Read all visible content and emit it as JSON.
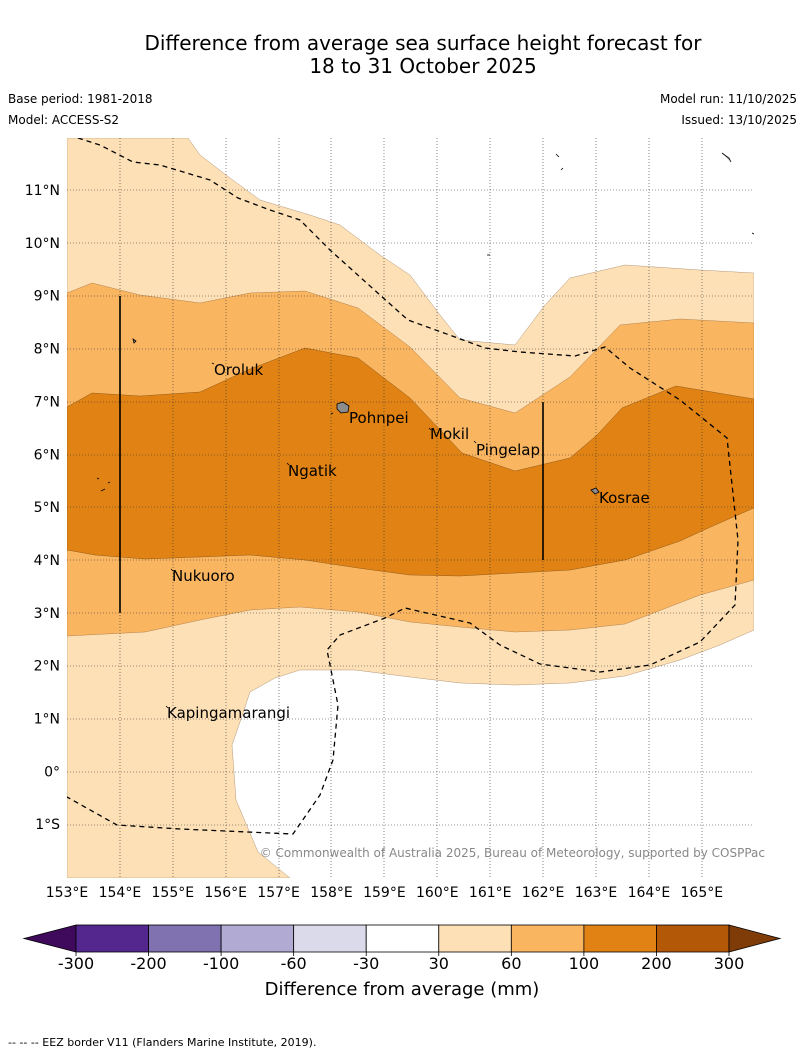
{
  "header": {
    "title_line1": "Difference from average sea surface height forecast for",
    "title_line2": "18 to 31 October 2025",
    "base_period": "Base period: 1981-2018",
    "model": "Model: ACCESS-S2",
    "model_run": "Model run: 11/10/2025",
    "issued": "Issued: 13/10/2025"
  },
  "map": {
    "lon_labels": [
      "153°E",
      "154°E",
      "155°E",
      "156°E",
      "157°E",
      "158°E",
      "159°E",
      "160°E",
      "161°E",
      "162°E",
      "163°E",
      "164°E",
      "165°E"
    ],
    "lat_labels": [
      "11°N",
      "10°N",
      "9°N",
      "8°N",
      "7°N",
      "6°N",
      "5°N",
      "4°N",
      "3°N",
      "2°N",
      "1°N",
      "0°",
      "1°S"
    ],
    "places": {
      "oroluk": "Oroluk",
      "pohnpei": "Pohnpei",
      "mokil": "Mokil",
      "pingelap": "Pingelap",
      "ngatik": "Ngatik",
      "kosrae": "Kosrae",
      "nukuoro": "Nukuoro",
      "kapingamarangi": "Kapingamarangi"
    },
    "copyright": "© Commonwealth of Australia 2025, Bureau of Meteorology, supported by COSPPac"
  },
  "colorbar": {
    "ticks": [
      "-300",
      "-200",
      "-100",
      "-60",
      "-30",
      "30",
      "60",
      "100",
      "200",
      "300"
    ],
    "colors": [
      "#3f0a5c",
      "#54278f",
      "#8072b0",
      "#b1aad3",
      "#dadaeb",
      "#ffffff",
      "#fde0b6",
      "#f9b560",
      "#e08214",
      "#b35806",
      "#7f3b08"
    ],
    "title": "Difference from average (mm)"
  },
  "footnote": "-- -- -- EEZ border V11 (Flanders Marine Institute, 2019).",
  "colors": {
    "band_30_60": "#fde0b6",
    "band_60_100": "#f9b560",
    "band_100_200": "#e08214",
    "land": "#8c8c8c"
  }
}
